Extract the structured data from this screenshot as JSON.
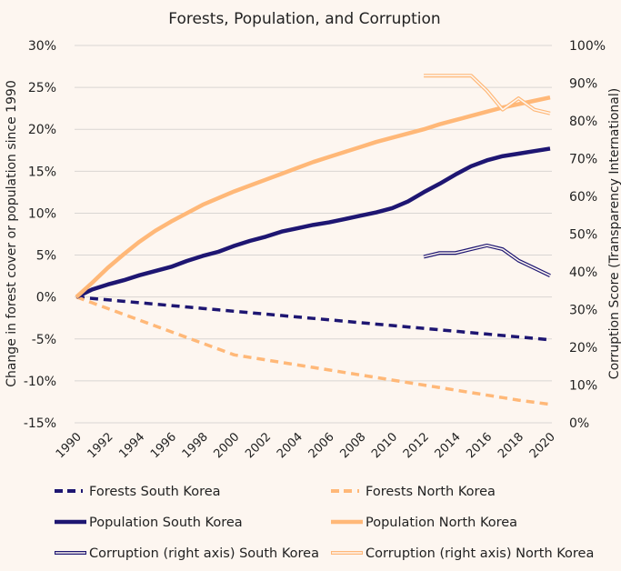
{
  "chart_data": {
    "type": "line",
    "title": "Forests, Population, and Corruption",
    "ylabel": "Change in forest cover or population since 1990",
    "y2label": "Corruption Score (Transparency International)",
    "ylim": [
      -15,
      30
    ],
    "y2lim": [
      0,
      100
    ],
    "xlim": [
      1990,
      2020
    ],
    "yticks": [
      "-15%",
      "-10%",
      "-5%",
      "0%",
      "5%",
      "10%",
      "15%",
      "20%",
      "25%",
      "30%"
    ],
    "y2ticks": [
      "0%",
      "10%",
      "20%",
      "30%",
      "40%",
      "50%",
      "60%",
      "70%",
      "80%",
      "90%",
      "100%"
    ],
    "xticks": [
      "1990",
      "1992",
      "1994",
      "1996",
      "1998",
      "2000",
      "2002",
      "2004",
      "2006",
      "2008",
      "2010",
      "2012",
      "2014",
      "2016",
      "2018",
      "2020"
    ],
    "grid": true,
    "legend": "bottom",
    "colors": {
      "south": "#1e1672",
      "north": "#ffb878"
    },
    "series": [
      {
        "name": "Forests South Korea",
        "style": "dashed",
        "color": "#1e1672",
        "axis": "left",
        "start": 1990,
        "values": [
          0,
          -0.17,
          -0.34,
          -0.51,
          -0.68,
          -0.85,
          -1.02,
          -1.19,
          -1.36,
          -1.53,
          -1.7,
          -1.87,
          -2.04,
          -2.21,
          -2.38,
          -2.55,
          -2.72,
          -2.89,
          -3.06,
          -3.23,
          -3.4,
          -3.57,
          -3.74,
          -3.91,
          -4.08,
          -4.25,
          -4.42,
          -4.59,
          -4.76,
          -4.93,
          -5.1
        ]
      },
      {
        "name": "Forests North Korea",
        "style": "dashed",
        "color": "#ffb878",
        "axis": "left",
        "start": 1990,
        "values": [
          0,
          -0.69,
          -1.38,
          -2.07,
          -2.76,
          -3.45,
          -4.14,
          -4.83,
          -5.52,
          -6.21,
          -6.9,
          -7.2,
          -7.5,
          -7.8,
          -8.1,
          -8.4,
          -8.7,
          -9.0,
          -9.3,
          -9.6,
          -9.9,
          -10.2,
          -10.5,
          -10.8,
          -11.1,
          -11.4,
          -11.7,
          -12.0,
          -12.3,
          -12.55,
          -12.8
        ]
      },
      {
        "name": "Population South Korea",
        "style": "solid",
        "color": "#1e1672",
        "axis": "left",
        "start": 1990,
        "values": [
          0,
          0.9,
          1.5,
          2.0,
          2.6,
          3.1,
          3.6,
          4.3,
          4.9,
          5.4,
          6.1,
          6.7,
          7.2,
          7.8,
          8.2,
          8.6,
          8.9,
          9.3,
          9.7,
          10.1,
          10.6,
          11.4,
          12.5,
          13.5,
          14.6,
          15.6,
          16.3,
          16.8,
          17.1,
          17.4,
          17.7
        ]
      },
      {
        "name": "Population North Korea",
        "style": "solid",
        "color": "#ffb878",
        "axis": "left",
        "start": 1990,
        "values": [
          0,
          1.7,
          3.5,
          5.1,
          6.6,
          7.9,
          9.0,
          10.0,
          11.0,
          11.8,
          12.6,
          13.3,
          14.0,
          14.7,
          15.4,
          16.1,
          16.7,
          17.3,
          17.9,
          18.5,
          19.0,
          19.5,
          20.0,
          20.6,
          21.1,
          21.6,
          22.1,
          22.6,
          23.0,
          23.4,
          23.8
        ]
      },
      {
        "name": "Corruption (right axis) South Korea",
        "style": "double",
        "color": "#1e1672",
        "axis": "right",
        "start": 2012,
        "values": [
          44,
          45,
          45,
          46,
          47,
          46,
          43,
          41,
          39
        ]
      },
      {
        "name": "Corruption (right axis) North Korea",
        "style": "double",
        "color": "#ffb878",
        "axis": "right",
        "start": 2012,
        "values": [
          92,
          92,
          92,
          92,
          88,
          83,
          86,
          83,
          82
        ]
      }
    ]
  }
}
